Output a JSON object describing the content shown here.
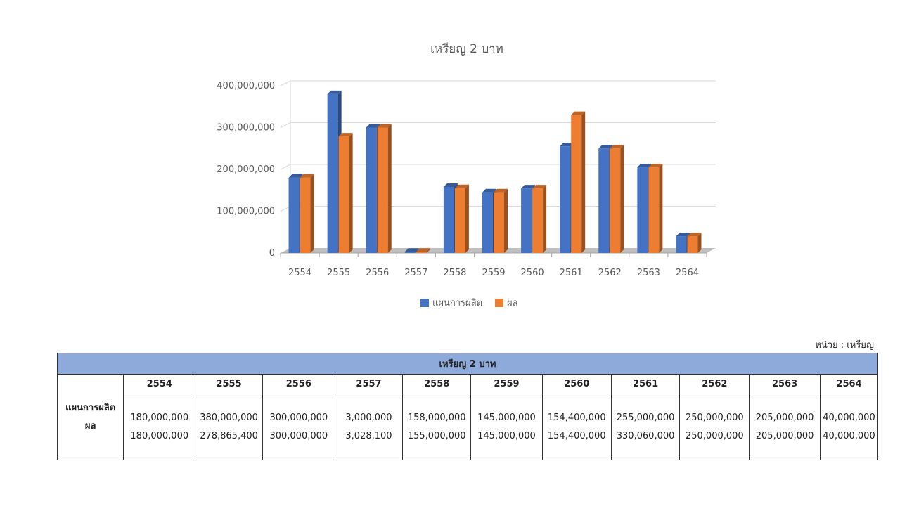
{
  "chart_data": {
    "type": "bar",
    "title": "เหรียญ 2 บาท",
    "categories": [
      "2554",
      "2555",
      "2556",
      "2557",
      "2558",
      "2559",
      "2560",
      "2561",
      "2562",
      "2563",
      "2564"
    ],
    "series": [
      {
        "name": "แผนการผลิต",
        "color": "#4472c4",
        "values": [
          180000000,
          380000000,
          300000000,
          3000000,
          158000000,
          145000000,
          154400000,
          255000000,
          250000000,
          205000000,
          40000000
        ]
      },
      {
        "name": "ผล",
        "color": "#ed7d31",
        "values": [
          180000000,
          278865400,
          300000000,
          3028100,
          155000000,
          145000000,
          154400000,
          330060000,
          250000000,
          205000000,
          40000000
        ]
      }
    ],
    "ylim": [
      0,
      400000000
    ],
    "yticks": [
      0,
      100000000,
      200000000,
      300000000,
      400000000
    ],
    "ytick_labels": [
      "0",
      "100,000,000",
      "200,000,000",
      "300,000,000",
      "400,000,000"
    ],
    "legend_position": "bottom",
    "grid": true
  },
  "unit_label": "หน่วย : เหรียญ",
  "table": {
    "title": "เหรียญ 2 บาท",
    "years": [
      "2554",
      "2555",
      "2556",
      "2557",
      "2558",
      "2559",
      "2560",
      "2561",
      "2562",
      "2563",
      "2564"
    ],
    "row_labels": [
      "แผนการผลิต",
      "ผล"
    ],
    "plan": [
      "180,000,000",
      "380,000,000",
      "300,000,000",
      "3,000,000",
      "158,000,000",
      "145,000,000",
      "154,400,000",
      "255,000,000",
      "250,000,000",
      "205,000,000",
      "40,000,000"
    ],
    "actual": [
      "180,000,000",
      "278,865,400",
      "300,000,000",
      "3,028,100",
      "155,000,000",
      "145,000,000",
      "154,400,000",
      "330,060,000",
      "250,000,000",
      "205,000,000",
      "40,000,000"
    ]
  }
}
